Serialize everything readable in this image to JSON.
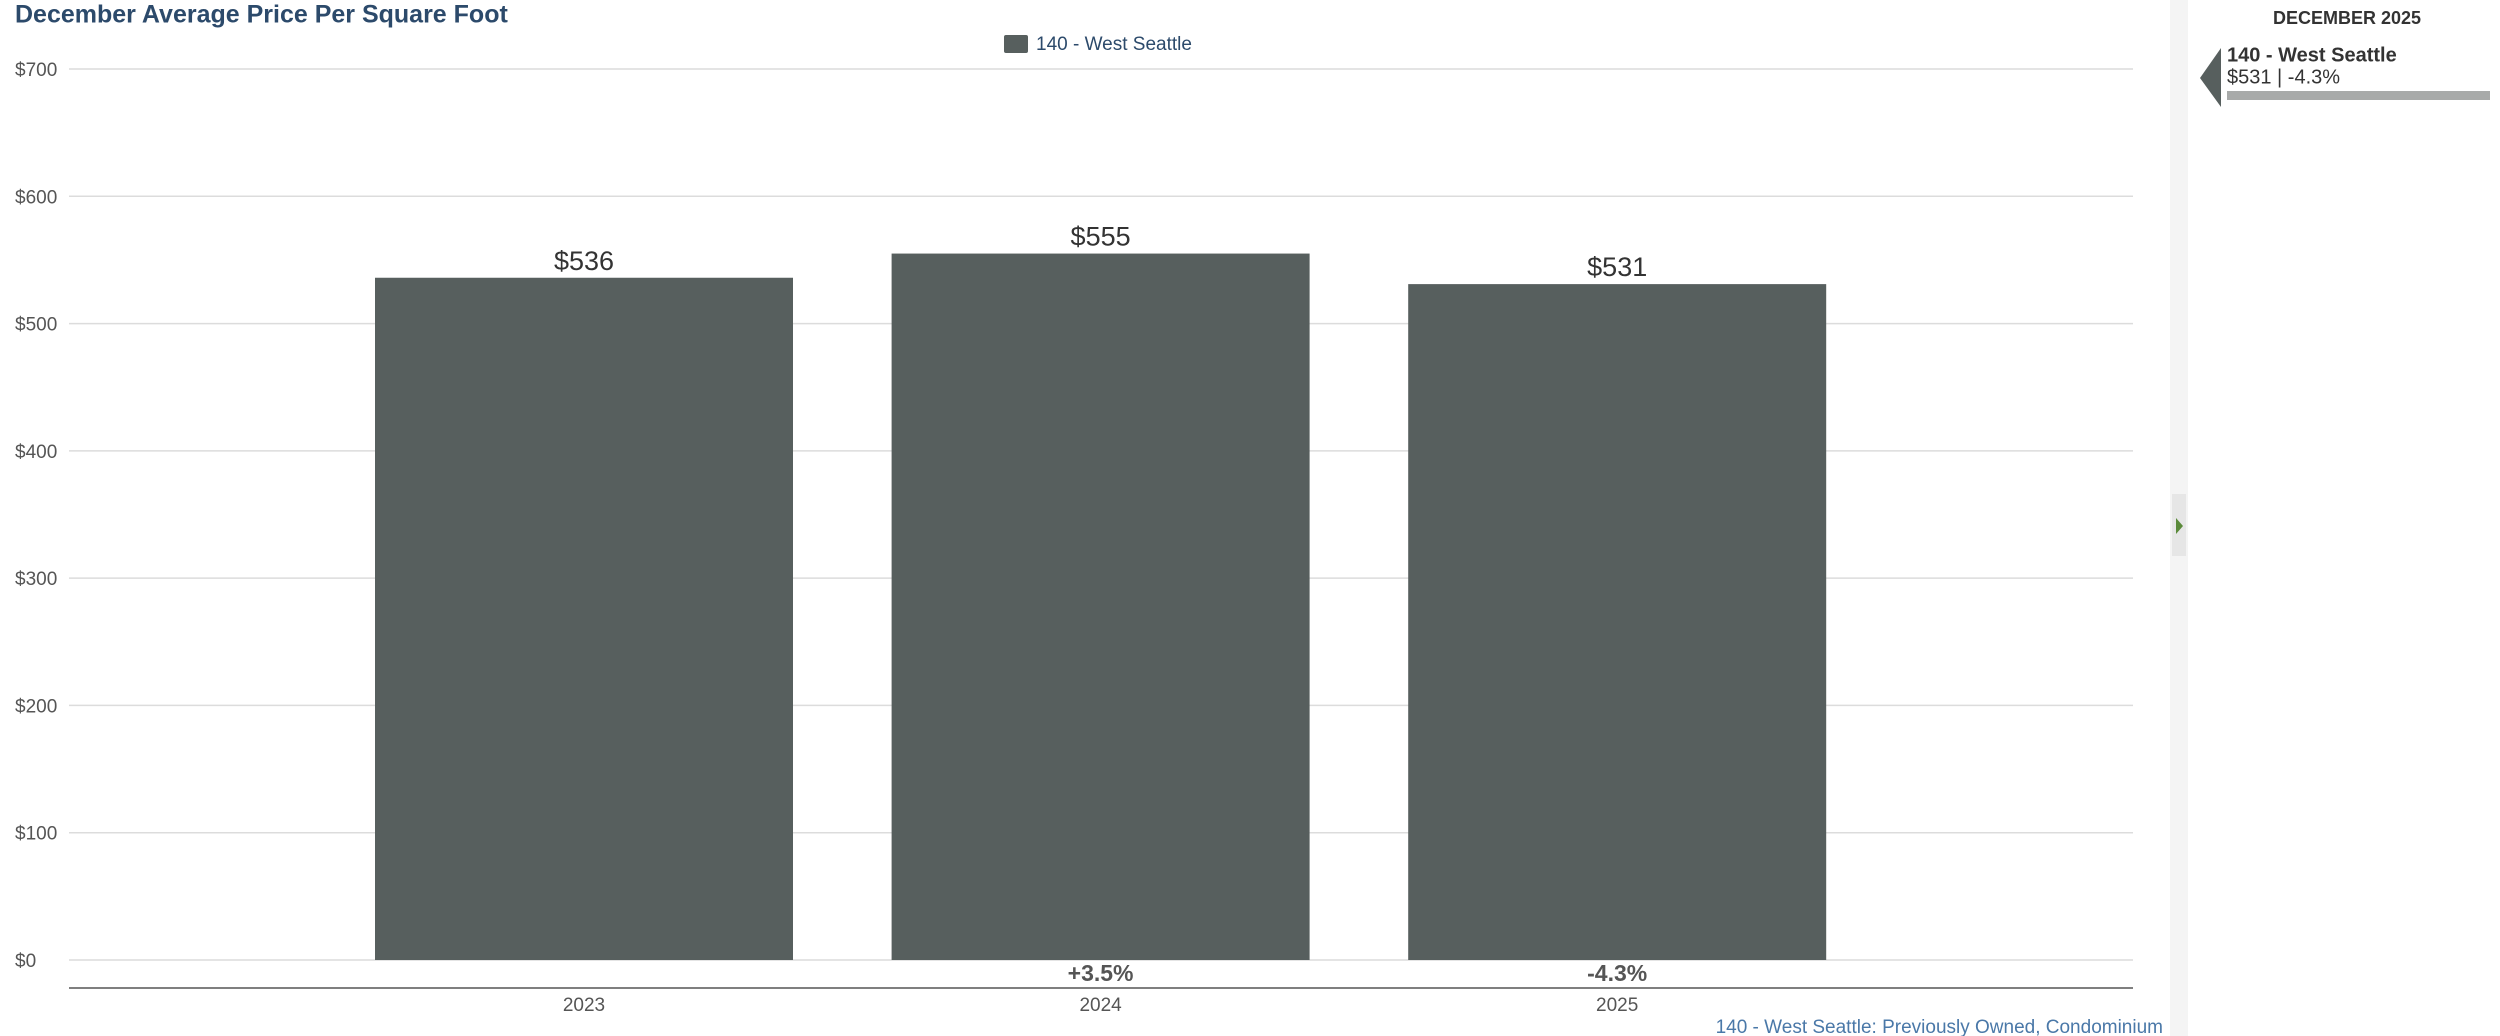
{
  "chart_data": {
    "type": "bar",
    "title": "December Average Price Per Square Foot",
    "categories": [
      "2023",
      "2024",
      "2025"
    ],
    "series": [
      {
        "name": "140 - West Seattle",
        "color": "#575f5e",
        "values": [
          536,
          555,
          531
        ],
        "value_labels": [
          "$536",
          "$555",
          "$531"
        ]
      }
    ],
    "change_labels": [
      null,
      "+3.5%",
      "-4.3%"
    ],
    "ylim": [
      0,
      700
    ],
    "yticks": [
      {
        "value": 0,
        "label": "$0"
      },
      {
        "value": 100,
        "label": "$100"
      },
      {
        "value": 200,
        "label": "$200"
      },
      {
        "value": 300,
        "label": "$300"
      },
      {
        "value": 400,
        "label": "$400"
      },
      {
        "value": 500,
        "label": "$500"
      },
      {
        "value": 600,
        "label": "$600"
      },
      {
        "value": 700,
        "label": "$700"
      }
    ],
    "grid": true,
    "legend": "top",
    "footnote": "140 - West Seattle: Previously Owned, Condominium"
  },
  "sidebar": {
    "heading": "DECEMBER 2025",
    "item_name": "140 - West Seattle",
    "item_detail": "$531 | -4.3%"
  }
}
